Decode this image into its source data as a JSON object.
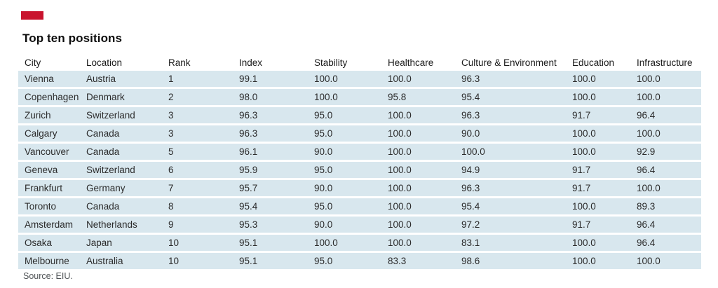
{
  "brand": {
    "tab_color": "#c9132d"
  },
  "title": "Top ten positions",
  "source": "Source: EIU.",
  "colors": {
    "row_band": "#d8e7ee",
    "background": "#ffffff",
    "header_text": "#1a1a1a",
    "cell_text": "#2b2b2b",
    "source_text": "#4f5356"
  },
  "table": {
    "columns": [
      "City",
      "Location",
      "Rank",
      "Index",
      "Stability",
      "Healthcare",
      "Culture & Environment",
      "Education",
      "Infrastructure"
    ],
    "rows": [
      [
        "Vienna",
        "Austria",
        "1",
        "99.1",
        "100.0",
        "100.0",
        "96.3",
        "100.0",
        "100.0"
      ],
      [
        "Copenhagen",
        "Denmark",
        "2",
        "98.0",
        "100.0",
        "95.8",
        "95.4",
        "100.0",
        "100.0"
      ],
      [
        "Zurich",
        "Switzerland",
        "3",
        "96.3",
        "95.0",
        "100.0",
        "96.3",
        "91.7",
        "96.4"
      ],
      [
        "Calgary",
        "Canada",
        "3",
        "96.3",
        "95.0",
        "100.0",
        "90.0",
        "100.0",
        "100.0"
      ],
      [
        "Vancouver",
        "Canada",
        "5",
        "96.1",
        "90.0",
        "100.0",
        "100.0",
        "100.0",
        "92.9"
      ],
      [
        "Geneva",
        "Switzerland",
        "6",
        "95.9",
        "95.0",
        "100.0",
        "94.9",
        "91.7",
        "96.4"
      ],
      [
        "Frankfurt",
        "Germany",
        "7",
        "95.7",
        "90.0",
        "100.0",
        "96.3",
        "91.7",
        "100.0"
      ],
      [
        "Toronto",
        "Canada",
        "8",
        "95.4",
        "95.0",
        "100.0",
        "95.4",
        "100.0",
        "89.3"
      ],
      [
        "Amsterdam",
        "Netherlands",
        "9",
        "95.3",
        "90.0",
        "100.0",
        "97.2",
        "91.7",
        "96.4"
      ],
      [
        "Osaka",
        "Japan",
        "10",
        "95.1",
        "100.0",
        "100.0",
        "83.1",
        "100.0",
        "96.4"
      ],
      [
        "Melbourne",
        "Australia",
        "10",
        "95.1",
        "95.0",
        "83.3",
        "98.6",
        "100.0",
        "100.0"
      ]
    ]
  },
  "chart_data": {
    "type": "table",
    "title": "Top ten positions",
    "columns": [
      "City",
      "Location",
      "Rank",
      "Index",
      "Stability",
      "Healthcare",
      "Culture & Environment",
      "Education",
      "Infrastructure"
    ],
    "rows": [
      [
        "Vienna",
        "Austria",
        1,
        99.1,
        100.0,
        100.0,
        96.3,
        100.0,
        100.0
      ],
      [
        "Copenhagen",
        "Denmark",
        2,
        98.0,
        100.0,
        95.8,
        95.4,
        100.0,
        100.0
      ],
      [
        "Zurich",
        "Switzerland",
        3,
        96.3,
        95.0,
        100.0,
        96.3,
        91.7,
        96.4
      ],
      [
        "Calgary",
        "Canada",
        3,
        96.3,
        95.0,
        100.0,
        90.0,
        100.0,
        100.0
      ],
      [
        "Vancouver",
        "Canada",
        5,
        96.1,
        90.0,
        100.0,
        100.0,
        100.0,
        92.9
      ],
      [
        "Geneva",
        "Switzerland",
        6,
        95.9,
        95.0,
        100.0,
        94.9,
        91.7,
        96.4
      ],
      [
        "Frankfurt",
        "Germany",
        7,
        95.7,
        90.0,
        100.0,
        96.3,
        91.7,
        100.0
      ],
      [
        "Toronto",
        "Canada",
        8,
        95.4,
        95.0,
        100.0,
        95.4,
        100.0,
        89.3
      ],
      [
        "Amsterdam",
        "Netherlands",
        9,
        95.3,
        90.0,
        100.0,
        97.2,
        91.7,
        96.4
      ],
      [
        "Osaka",
        "Japan",
        10,
        95.1,
        100.0,
        100.0,
        83.1,
        100.0,
        96.4
      ],
      [
        "Melbourne",
        "Australia",
        10,
        95.1,
        95.0,
        83.3,
        98.6,
        100.0,
        100.0
      ]
    ],
    "source": "Source: EIU."
  }
}
